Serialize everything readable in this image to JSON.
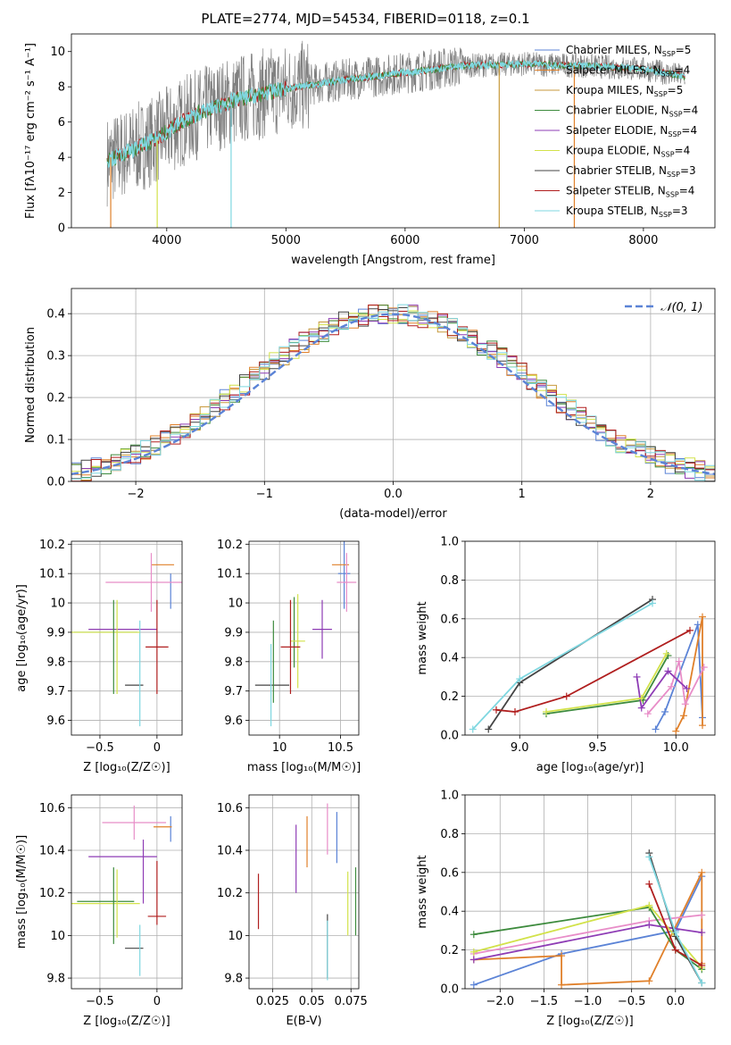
{
  "title": "PLATE=2774, MJD=54534, FIBERID=0118, z=0.1",
  "colors": {
    "chabrier_miles": "#5b83d6",
    "salpeter_miles": "#e0802a",
    "kroupa_miles": "#c79a3c",
    "chabrier_elodie": "#3d8b3d",
    "salpeter_elodie": "#8e3cb5",
    "kroupa_elodie": "#d2e24a",
    "chabrier_stelib": "#444444",
    "salpeter_stelib": "#b01e1e",
    "kroupa_stelib": "#7fd7e0",
    "pink": "#e88dc8"
  },
  "chart_data": [
    {
      "id": "spectrum",
      "type": "line",
      "xlabel": "wavelength [Angstrom, rest frame]",
      "ylabel": "Flux [fλ10⁻¹⁷ erg cm⁻² s⁻¹ A⁻¹]",
      "xlim": [
        3200,
        8600
      ],
      "ylim": [
        0,
        11
      ],
      "xticks": [
        4000,
        5000,
        6000,
        7000,
        8000
      ],
      "yticks": [
        0,
        2,
        4,
        6,
        8,
        10
      ],
      "legend_position": "top-right",
      "legend": [
        {
          "label": "Chabrier MILES, N",
          "sub": "SSP",
          "tail": "=5",
          "color": "chabrier_miles"
        },
        {
          "label": "Salpeter MILES, N",
          "sub": "SSP",
          "tail": "=4",
          "color": "salpeter_miles"
        },
        {
          "label": "Kroupa MILES, N",
          "sub": "SSP",
          "tail": "=5",
          "color": "kroupa_miles"
        },
        {
          "label": "Chabrier ELODIE, N",
          "sub": "SSP",
          "tail": "=4",
          "color": "chabrier_elodie"
        },
        {
          "label": "Salpeter ELODIE, N",
          "sub": "SSP",
          "tail": "=4",
          "color": "salpeter_elodie"
        },
        {
          "label": "Kroupa ELODIE, N",
          "sub": "SSP",
          "tail": "=4",
          "color": "kroupa_elodie"
        },
        {
          "label": "Chabrier STELIB, N",
          "sub": "SSP",
          "tail": "=3",
          "color": "chabrier_stelib"
        },
        {
          "label": "Salpeter STELIB, N",
          "sub": "SSP",
          "tail": "=4",
          "color": "salpeter_stelib"
        },
        {
          "label": "Kroupa STELIB, N",
          "sub": "SSP",
          "tail": "=3",
          "color": "kroupa_stelib"
        }
      ],
      "continuum": {
        "x": [
          3500,
          3700,
          3900,
          4100,
          4300,
          4600,
          5000,
          5500,
          6000,
          6500,
          7000,
          7500,
          8000,
          8350
        ],
        "y": [
          3.8,
          4.4,
          5.0,
          5.9,
          6.6,
          7.3,
          7.9,
          8.4,
          8.8,
          9.2,
          9.3,
          9.2,
          9.0,
          8.6
        ]
      },
      "spikes": [
        {
          "x": 3530,
          "y0": 4,
          "y1": 0,
          "color": "salpeter_miles"
        },
        {
          "x": 3920,
          "y0": 5,
          "y1": 0,
          "color": "kroupa_elodie"
        },
        {
          "x": 4540,
          "y0": 7,
          "y1": 0,
          "color": "kroupa_stelib"
        },
        {
          "x": 6790,
          "y0": 9.3,
          "y1": 0,
          "color": "kroupa_miles"
        },
        {
          "x": 7420,
          "y0": 9.2,
          "y1": 0,
          "color": "salpeter_miles"
        }
      ]
    },
    {
      "id": "residuals",
      "type": "step",
      "xlabel": "(data-model)/error",
      "ylabel": "Normed distribution",
      "xlim": [
        -2.5,
        2.5
      ],
      "ylim": [
        0,
        0.46
      ],
      "xticks": [
        -2,
        -1,
        0,
        1,
        2
      ],
      "yticks": [
        0.0,
        0.1,
        0.2,
        0.3,
        0.4
      ],
      "legend_label": "𝒩(0, 1)",
      "legend_position": "top-right",
      "bin_width": 0.1,
      "base": [
        0.021,
        0.026,
        0.031,
        0.038,
        0.045,
        0.054,
        0.063,
        0.074,
        0.086,
        0.099,
        0.113,
        0.128,
        0.144,
        0.16,
        0.177,
        0.194,
        0.212,
        0.23,
        0.248,
        0.266,
        0.283,
        0.3,
        0.316,
        0.331,
        0.345,
        0.358,
        0.37,
        0.38,
        0.388,
        0.395,
        0.399,
        0.4,
        0.4,
        0.399,
        0.396,
        0.391,
        0.384,
        0.375,
        0.365,
        0.353,
        0.34,
        0.325,
        0.31,
        0.294,
        0.277,
        0.259,
        0.241,
        0.223,
        0.205,
        0.187,
        0.169,
        0.152,
        0.136,
        0.12,
        0.106,
        0.093,
        0.081,
        0.07,
        0.06,
        0.051,
        0.044,
        0.037,
        0.031,
        0.026,
        0.022
      ]
    },
    {
      "id": "age_vs_Z",
      "type": "errorbar",
      "xlabel": "Z [log₁₀(Z/Z☉)]",
      "ylabel": "age  [log₁₀(age/yr)]",
      "xlim": [
        -0.75,
        0.22
      ],
      "ylim": [
        9.55,
        10.21
      ],
      "xticks": [
        -0.5,
        0.0
      ],
      "yticks": [
        9.6,
        9.7,
        9.8,
        9.9,
        10.0,
        10.1,
        10.2
      ],
      "points": [
        {
          "x": 0.12,
          "y": 10.04,
          "dx": 0.0,
          "dy": 0.06,
          "color": "chabrier_miles"
        },
        {
          "x": 0.05,
          "y": 10.13,
          "dx": 0.1,
          "dy": 0.0,
          "color": "salpeter_miles"
        },
        {
          "x": -0.05,
          "y": 10.07,
          "dx": 0.4,
          "dy": 0.1,
          "color": "pink"
        },
        {
          "x": -0.45,
          "y": 9.9,
          "dx": 0.28,
          "dy": 0.0,
          "color": "chabrier_elodie"
        },
        {
          "x": -0.3,
          "y": 9.91,
          "dx": 0.3,
          "dy": 0.0,
          "color": "salpeter_elodie"
        },
        {
          "x": -0.35,
          "y": 9.85,
          "dx": 0.0,
          "dy": 0.16,
          "color": "kroupa_elodie"
        },
        {
          "x": -0.2,
          "y": 9.72,
          "dx": 0.08,
          "dy": 0.0,
          "color": "chabrier_stelib"
        },
        {
          "x": 0.0,
          "y": 9.85,
          "dx": 0.1,
          "dy": 0.16,
          "color": "salpeter_stelib"
        },
        {
          "x": -0.15,
          "y": 9.76,
          "dx": 0.0,
          "dy": 0.18,
          "color": "kroupa_stelib"
        },
        {
          "x": -0.45,
          "y": 9.9,
          "dx": 0.3,
          "dy": 0.0,
          "color": "kroupa_elodie"
        },
        {
          "x": -0.38,
          "y": 9.85,
          "dx": 0.0,
          "dy": 0.16,
          "color": "chabrier_elodie"
        }
      ]
    },
    {
      "id": "age_vs_mass",
      "type": "errorbar",
      "xlabel": "mass [log₁₀(M/M☉)]",
      "ylabel": "",
      "xlim": [
        9.75,
        10.65
      ],
      "ylim": [
        9.55,
        10.21
      ],
      "xticks": [
        10.0,
        10.5
      ],
      "yticks": [
        9.6,
        9.7,
        9.8,
        9.9,
        10.0,
        10.1,
        10.2
      ],
      "points": [
        {
          "x": 10.53,
          "y": 10.1,
          "dx": 0.05,
          "dy": 0.12,
          "color": "chabrier_miles"
        },
        {
          "x": 10.5,
          "y": 10.13,
          "dx": 0.07,
          "dy": 0.0,
          "color": "salpeter_miles"
        },
        {
          "x": 10.55,
          "y": 10.07,
          "dx": 0.08,
          "dy": 0.1,
          "color": "pink"
        },
        {
          "x": 10.12,
          "y": 9.9,
          "dx": 0.0,
          "dy": 0.12,
          "color": "chabrier_elodie"
        },
        {
          "x": 10.35,
          "y": 9.91,
          "dx": 0.08,
          "dy": 0.1,
          "color": "salpeter_elodie"
        },
        {
          "x": 10.15,
          "y": 9.87,
          "dx": 0.06,
          "dy": 0.16,
          "color": "kroupa_elodie"
        },
        {
          "x": 9.94,
          "y": 9.72,
          "dx": 0.14,
          "dy": 0.0,
          "color": "chabrier_stelib"
        },
        {
          "x": 10.09,
          "y": 9.85,
          "dx": 0.08,
          "dy": 0.16,
          "color": "salpeter_stelib"
        },
        {
          "x": 9.93,
          "y": 9.72,
          "dx": 0.0,
          "dy": 0.14,
          "color": "kroupa_stelib"
        },
        {
          "x": 9.95,
          "y": 9.8,
          "dx": 0.0,
          "dy": 0.14,
          "color": "chabrier_elodie"
        }
      ]
    },
    {
      "id": "weight_vs_age",
      "type": "line",
      "xlabel": "age  [log₁₀(age/yr)]",
      "ylabel": "mass weight",
      "xlim": [
        8.65,
        10.25
      ],
      "ylim": [
        0.0,
        1.0
      ],
      "xticks": [
        9.0,
        9.5,
        10.0
      ],
      "yticks": [
        0.0,
        0.2,
        0.4,
        0.6,
        0.8,
        1.0
      ],
      "series": [
        {
          "color": "chabrier_miles",
          "x": [
            9.87,
            9.93,
            10.14,
            10.17
          ],
          "y": [
            0.03,
            0.12,
            0.57,
            0.09
          ]
        },
        {
          "color": "salpeter_miles",
          "x": [
            10.0,
            10.05,
            10.17,
            10.17
          ],
          "y": [
            0.02,
            0.1,
            0.61,
            0.05
          ]
        },
        {
          "color": "pink",
          "x": [
            9.82,
            9.97,
            10.02,
            10.06,
            10.18
          ],
          "y": [
            0.11,
            0.25,
            0.38,
            0.16,
            0.35
          ]
        },
        {
          "color": "chabrier_elodie",
          "x": [
            9.17,
            9.79,
            9.95
          ],
          "y": [
            0.11,
            0.18,
            0.41
          ]
        },
        {
          "color": "salpeter_elodie",
          "x": [
            9.75,
            9.78,
            9.95,
            10.07
          ],
          "y": [
            0.3,
            0.14,
            0.33,
            0.24
          ]
        },
        {
          "color": "kroupa_elodie",
          "x": [
            9.17,
            9.78,
            9.94
          ],
          "y": [
            0.12,
            0.19,
            0.42
          ]
        },
        {
          "color": "chabrier_stelib",
          "x": [
            8.8,
            9.0,
            9.85
          ],
          "y": [
            0.03,
            0.27,
            0.7
          ]
        },
        {
          "color": "salpeter_stelib",
          "x": [
            8.85,
            8.97,
            9.3,
            10.09
          ],
          "y": [
            0.13,
            0.12,
            0.2,
            0.54
          ]
        },
        {
          "color": "kroupa_stelib",
          "x": [
            8.7,
            9.0,
            9.85
          ],
          "y": [
            0.03,
            0.29,
            0.68
          ]
        }
      ]
    },
    {
      "id": "mass_vs_Z",
      "type": "errorbar",
      "xlabel": "Z [log₁₀(Z/Z☉)]",
      "ylabel": "mass [log₁₀(M/M☉)]",
      "xlim": [
        -0.75,
        0.22
      ],
      "ylim": [
        9.75,
        10.66
      ],
      "xticks": [
        -0.5,
        0.0
      ],
      "yticks": [
        9.8,
        10.0,
        10.2,
        10.4,
        10.6
      ],
      "points": [
        {
          "x": 0.12,
          "y": 10.5,
          "dx": 0.0,
          "dy": 0.06,
          "color": "chabrier_miles"
        },
        {
          "x": 0.05,
          "y": 10.51,
          "dx": 0.08,
          "dy": 0.0,
          "color": "salpeter_miles"
        },
        {
          "x": -0.2,
          "y": 10.53,
          "dx": 0.28,
          "dy": 0.08,
          "color": "pink"
        },
        {
          "x": -0.45,
          "y": 10.16,
          "dx": 0.25,
          "dy": 0.0,
          "color": "chabrier_elodie"
        },
        {
          "x": -0.3,
          "y": 10.37,
          "dx": 0.3,
          "dy": 0.0,
          "color": "salpeter_elodie"
        },
        {
          "x": -0.35,
          "y": 10.15,
          "dx": 0.0,
          "dy": 0.16,
          "color": "kroupa_elodie"
        },
        {
          "x": -0.2,
          "y": 9.94,
          "dx": 0.08,
          "dy": 0.0,
          "color": "chabrier_stelib"
        },
        {
          "x": 0.0,
          "y": 10.09,
          "dx": 0.08,
          "dy": 0.0,
          "color": "salpeter_stelib"
        },
        {
          "x": -0.15,
          "y": 9.93,
          "dx": 0.0,
          "dy": 0.12,
          "color": "kroupa_stelib"
        },
        {
          "x": -0.45,
          "y": 10.15,
          "dx": 0.3,
          "dy": 0.0,
          "color": "kroupa_elodie"
        },
        {
          "x": -0.38,
          "y": 10.14,
          "dx": 0.0,
          "dy": 0.18,
          "color": "chabrier_elodie"
        },
        {
          "x": -0.12,
          "y": 10.3,
          "dx": 0.0,
          "dy": 0.15,
          "color": "salpeter_elodie"
        },
        {
          "x": 0.0,
          "y": 10.2,
          "dx": 0.0,
          "dy": 0.15,
          "color": "salpeter_stelib"
        }
      ]
    },
    {
      "id": "mass_vs_ebv",
      "type": "errorbar",
      "xlabel": "E(B-V)",
      "ylabel": "",
      "xlim": [
        0.01,
        0.08
      ],
      "ylim": [
        9.75,
        10.66
      ],
      "xticks": [
        0.025,
        0.05,
        0.075
      ],
      "yticks": [
        9.8,
        10.0,
        10.2,
        10.4,
        10.6
      ],
      "points": [
        {
          "x": 0.016,
          "y": 10.16,
          "dx": 0.0,
          "dy": 0.13,
          "color": "salpeter_stelib"
        },
        {
          "x": 0.04,
          "y": 10.36,
          "dx": 0.0,
          "dy": 0.16,
          "color": "salpeter_elodie"
        },
        {
          "x": 0.047,
          "y": 10.44,
          "dx": 0.0,
          "dy": 0.12,
          "color": "salpeter_miles"
        },
        {
          "x": 0.06,
          "y": 10.5,
          "dx": 0.0,
          "dy": 0.12,
          "color": "pink"
        },
        {
          "x": 0.06,
          "y": 9.95,
          "dx": 0.0,
          "dy": 0.15,
          "color": "chabrier_stelib"
        },
        {
          "x": 0.06,
          "y": 9.93,
          "dx": 0.0,
          "dy": 0.14,
          "color": "kroupa_stelib"
        },
        {
          "x": 0.066,
          "y": 10.46,
          "dx": 0.0,
          "dy": 0.12,
          "color": "chabrier_miles"
        },
        {
          "x": 0.073,
          "y": 10.15,
          "dx": 0.0,
          "dy": 0.15,
          "color": "kroupa_elodie"
        },
        {
          "x": 0.078,
          "y": 10.16,
          "dx": 0.0,
          "dy": 0.16,
          "color": "chabrier_elodie"
        }
      ]
    },
    {
      "id": "weight_vs_Z",
      "type": "line",
      "xlabel": "Z [log₁₀(Z/Z☉)]",
      "ylabel": "mass weight",
      "xlim": [
        -2.4,
        0.45
      ],
      "ylim": [
        0.0,
        1.0
      ],
      "xticks": [
        -2.0,
        -1.5,
        -1.0,
        -0.5,
        0.0
      ],
      "yticks": [
        0.0,
        0.2,
        0.4,
        0.6,
        0.8,
        1.0
      ],
      "series": [
        {
          "color": "chabrier_miles",
          "x": [
            -2.3,
            -1.3,
            0.0,
            0.3
          ],
          "y": [
            0.02,
            0.18,
            0.3,
            0.58
          ]
        },
        {
          "color": "salpeter_miles",
          "x": [
            -2.3,
            -1.3,
            -1.3,
            -0.3,
            0.3,
            0.3
          ],
          "y": [
            0.15,
            0.17,
            0.02,
            0.04,
            0.6,
            0.13
          ]
        },
        {
          "color": "pink",
          "x": [
            -2.3,
            -0.3,
            0.3
          ],
          "y": [
            0.18,
            0.35,
            0.38
          ]
        },
        {
          "color": "chabrier_elodie",
          "x": [
            -2.3,
            -0.3,
            0.0,
            0.3
          ],
          "y": [
            0.28,
            0.42,
            0.2,
            0.1
          ]
        },
        {
          "color": "salpeter_elodie",
          "x": [
            -2.3,
            -0.3,
            0.3
          ],
          "y": [
            0.15,
            0.33,
            0.29
          ]
        },
        {
          "color": "kroupa_elodie",
          "x": [
            -2.3,
            -0.3,
            0.0,
            0.3
          ],
          "y": [
            0.19,
            0.43,
            0.27,
            0.11
          ]
        },
        {
          "color": "chabrier_stelib",
          "x": [
            -0.3,
            0.0,
            0.3
          ],
          "y": [
            0.7,
            0.27,
            0.03
          ]
        },
        {
          "color": "salpeter_stelib",
          "x": [
            -0.3,
            0.0,
            0.3
          ],
          "y": [
            0.54,
            0.2,
            0.12
          ]
        },
        {
          "color": "kroupa_stelib",
          "x": [
            -0.3,
            0.0,
            0.3
          ],
          "y": [
            0.68,
            0.29,
            0.03
          ]
        }
      ]
    }
  ]
}
